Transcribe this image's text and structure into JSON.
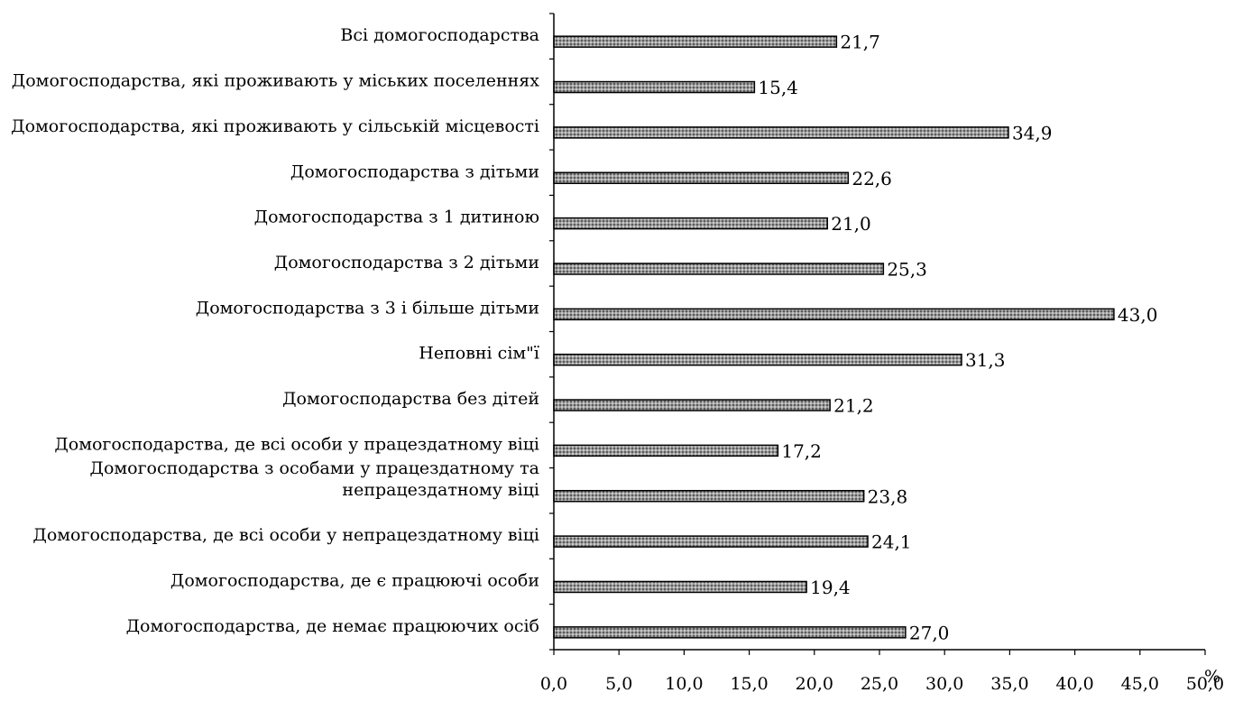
{
  "chart_data": {
    "type": "bar",
    "orientation": "horizontal",
    "categories": [
      [
        "Всі домогосподарства"
      ],
      [
        "Домогосподарства, які проживають у міських поселеннях"
      ],
      [
        "Домогосподарства, які проживають у сільській місцевості"
      ],
      [
        "Домогосподарства з дітьми"
      ],
      [
        "Домогосподарства з 1 дитиною"
      ],
      [
        "Домогосподарства з 2 дітьми"
      ],
      [
        "Домогосподарства з 3 і більше дітьми"
      ],
      [
        "Неповні сім\"ї"
      ],
      [
        "Домогосподарства без дітей"
      ],
      [
        "Домогосподарства, де всі особи у працездатному віці"
      ],
      [
        "Домогосподарства з особами у працездатному та",
        "непрацездатному віці"
      ],
      [
        "Домогосподарства, де всі особи у непрацездатному віці"
      ],
      [
        "Домогосподарства, де є працюючі особи"
      ],
      [
        "Домогосподарства, де немає працюючих осіб"
      ]
    ],
    "values": [
      21.7,
      15.4,
      34.9,
      22.6,
      21.0,
      25.3,
      43.0,
      31.3,
      21.2,
      17.2,
      23.8,
      24.1,
      19.4,
      27.0
    ],
    "value_labels": [
      "21,7",
      "15,4",
      "34,9",
      "22,6",
      "21,0",
      "25,3",
      "43,0",
      "31,3",
      "21,2",
      "17,2",
      "23,8",
      "24,1",
      "19,4",
      "27,0"
    ],
    "x_ticks": [
      0,
      5,
      10,
      15,
      20,
      25,
      30,
      35,
      40,
      45,
      50
    ],
    "x_tick_labels": [
      "0,0",
      "5,0",
      "10,0",
      "15,0",
      "20,0",
      "25,0",
      "30,0",
      "35,0",
      "40,0",
      "45,0",
      "50,0"
    ],
    "xlim": [
      0,
      50
    ],
    "x_unit": "%",
    "title": "",
    "xlabel": "",
    "ylabel": "",
    "grid": false,
    "legend": "none",
    "bar_fill": "#8a8a8a",
    "bar_stroke": "#000000"
  }
}
